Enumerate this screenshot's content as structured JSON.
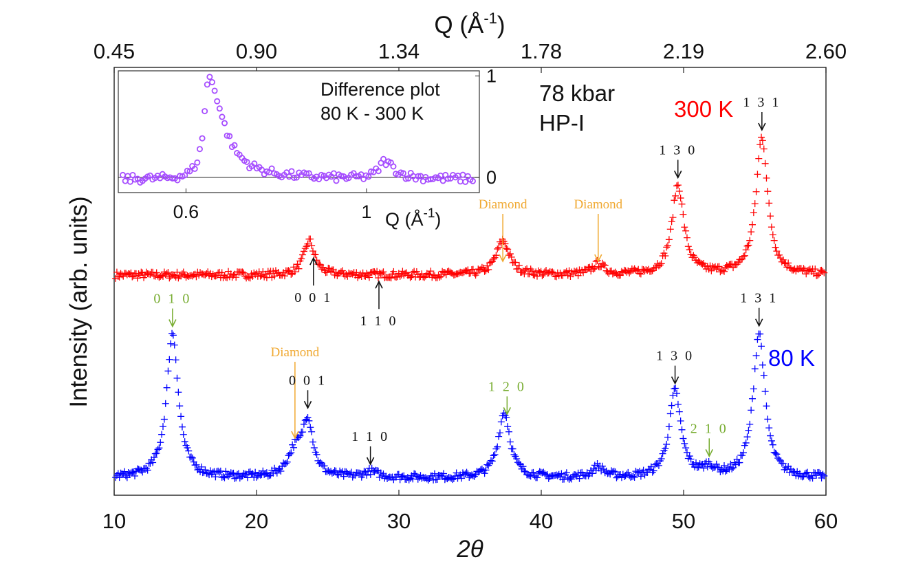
{
  "chart_data": {
    "type": "scatter",
    "xlabel": "2θ",
    "ylabel": "Intensity (arb. units)",
    "xlim": [
      10,
      60
    ],
    "x_ticks": [
      10,
      20,
      30,
      40,
      50,
      60
    ],
    "top_axis": {
      "label_main": "Q (Å",
      "label_sup": "-1",
      "label_close": ")",
      "ticks": [
        {
          "two_theta": 10,
          "label": "0.45"
        },
        {
          "two_theta": 20,
          "label": "0.90"
        },
        {
          "two_theta": 30,
          "label": "1.34"
        },
        {
          "two_theta": 40,
          "label": "1.78"
        },
        {
          "two_theta": 50,
          "label": "2.19"
        },
        {
          "two_theta": 60,
          "label": "2.60"
        }
      ]
    },
    "conditions": {
      "pressure": "78 kbar",
      "phase": "HP-I"
    },
    "series": [
      {
        "name": "300 K",
        "color": "#ff0000",
        "marker": "plus",
        "baseline": 1.0,
        "noise": 0.05,
        "peaks": [
          {
            "x": 23.7,
            "height": 0.5,
            "width": 0.45
          },
          {
            "x": 37.3,
            "height": 0.5,
            "width": 0.55
          },
          {
            "x": 44.0,
            "height": 0.15,
            "width": 0.5
          },
          {
            "x": 49.6,
            "height": 1.3,
            "width": 0.5
          },
          {
            "x": 55.5,
            "height": 2.0,
            "width": 0.5
          }
        ]
      },
      {
        "name": "80 K",
        "color": "#0000ff",
        "marker": "plus",
        "baseline": 0.0,
        "noise": 0.05,
        "peaks": [
          {
            "x": 14.1,
            "height": 2.1,
            "width": 0.5
          },
          {
            "x": 22.7,
            "height": 0.35,
            "width": 0.6
          },
          {
            "x": 23.6,
            "height": 0.8,
            "width": 0.45
          },
          {
            "x": 28.0,
            "height": 0.08,
            "width": 0.6
          },
          {
            "x": 37.4,
            "height": 0.95,
            "width": 0.5
          },
          {
            "x": 44.0,
            "height": 0.15,
            "width": 0.5
          },
          {
            "x": 49.4,
            "height": 1.25,
            "width": 0.5
          },
          {
            "x": 51.8,
            "height": 0.12,
            "width": 0.5
          },
          {
            "x": 55.3,
            "height": 2.1,
            "width": 0.5
          }
        ]
      }
    ],
    "annotations": [
      {
        "text": "1 3 1",
        "series": "300 K",
        "x": 55.5,
        "color": "#111111",
        "kind": "hkl",
        "dir": "down"
      },
      {
        "text": "1 3 0",
        "series": "300 K",
        "x": 49.6,
        "color": "#111111",
        "kind": "hkl",
        "dir": "down"
      },
      {
        "text": "0 0 1",
        "series": "300 K",
        "x": 24.0,
        "color": "#111111",
        "kind": "hkl",
        "dir": "up"
      },
      {
        "text": "1 1 0",
        "series": "300 K",
        "x": 28.6,
        "color": "#111111",
        "kind": "hkl",
        "dir": "up"
      },
      {
        "text": "Diamond",
        "series": "300 K",
        "x": 37.3,
        "color": "#f0a830",
        "kind": "diamond"
      },
      {
        "text": "Diamond",
        "series": "300 K",
        "x": 44.0,
        "color": "#f0a830",
        "kind": "diamond"
      },
      {
        "text": "0 1 0",
        "series": "80 K",
        "x": 14.1,
        "color": "#77ac30",
        "kind": "hkl",
        "dir": "down"
      },
      {
        "text": "Diamond",
        "series": "80 K",
        "x": 22.7,
        "color": "#f0a830",
        "kind": "diamond"
      },
      {
        "text": "0 0 1",
        "series": "80 K",
        "x": 23.6,
        "color": "#111111",
        "kind": "hkl",
        "dir": "down"
      },
      {
        "text": "1 1 0",
        "series": "80 K",
        "x": 28.0,
        "color": "#111111",
        "kind": "hkl",
        "dir": "down"
      },
      {
        "text": "1 2 0",
        "series": "80 K",
        "x": 37.6,
        "color": "#77ac30",
        "kind": "hkl",
        "dir": "down"
      },
      {
        "text": "1 3 0",
        "series": "80 K",
        "x": 49.4,
        "color": "#111111",
        "kind": "hkl",
        "dir": "down"
      },
      {
        "text": "2 1 0",
        "series": "80 K",
        "x": 51.8,
        "color": "#77ac30",
        "kind": "hkl",
        "dir": "down"
      },
      {
        "text": "1 3 1",
        "series": "80 K",
        "x": 55.3,
        "color": "#111111",
        "kind": "hkl",
        "dir": "down"
      }
    ],
    "inset": {
      "title_line1": "Difference plot",
      "title_line2": "80 K - 300 K",
      "xlabel_main": "Q (Å",
      "xlabel_sup": "-1",
      "xlabel_close": ")",
      "xlim": [
        0.45,
        1.25
      ],
      "ylim": [
        -0.15,
        1.05
      ],
      "x_ticks": [
        {
          "value": 0.6,
          "label": "0.6"
        },
        {
          "value": 1.0,
          "label": "1"
        }
      ],
      "y_ticks": [
        {
          "value": 0,
          "label": "0"
        },
        {
          "value": 1,
          "label": "1"
        }
      ],
      "color": "#a64dff",
      "marker": "circle",
      "peaks": [
        {
          "x": 0.65,
          "height": 1.0,
          "width_left": 0.012,
          "width_right": 0.038
        },
        {
          "x": 1.04,
          "height": 0.17,
          "width_left": 0.015,
          "width_right": 0.025
        }
      ]
    }
  }
}
